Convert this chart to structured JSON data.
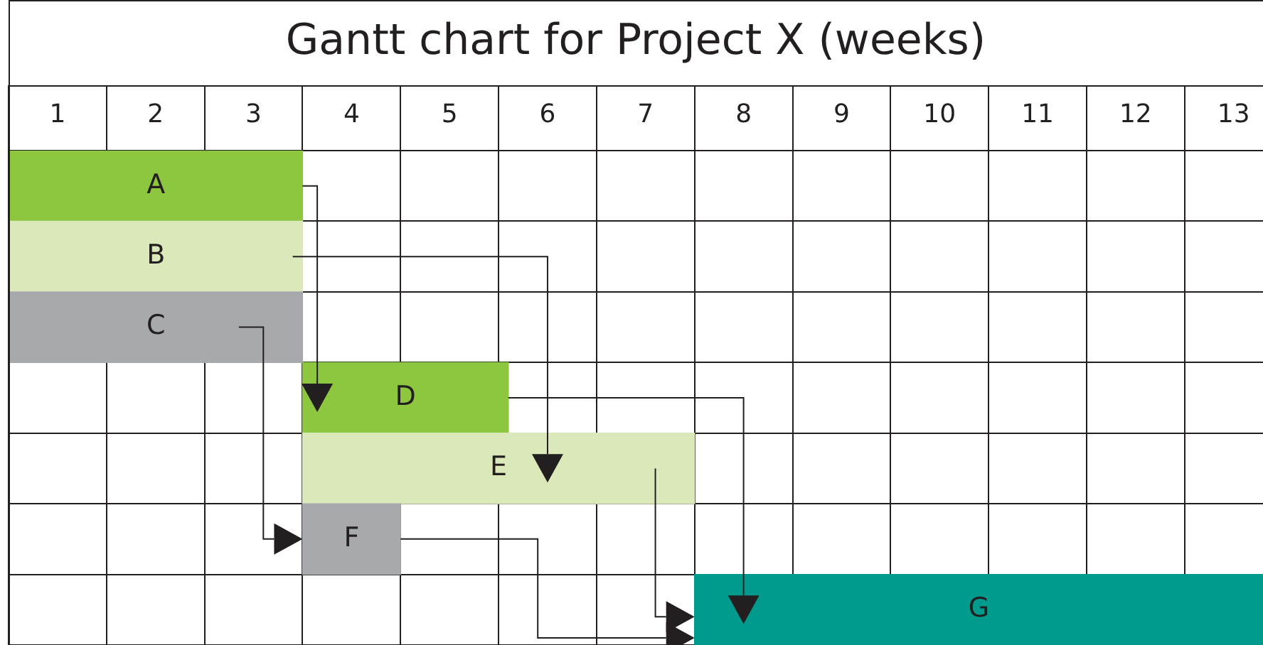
{
  "chart_data": {
    "type": "bar",
    "orientation": "horizontal",
    "title": "Gantt chart for Project X (weeks)",
    "categories": [
      "A",
      "B",
      "C",
      "D",
      "E",
      "F",
      "G"
    ],
    "base": [
      0,
      0,
      0,
      3,
      3,
      3,
      7
    ],
    "values": [
      3,
      3,
      3,
      2.1,
      4,
      1,
      5.8
    ],
    "colors": [
      "#8dc63f",
      "#dbe8b9",
      "#a7a9ac",
      "#8dc63f",
      "#dbe8b9",
      "#a7a9ac",
      "#009b8d"
    ],
    "xlim": [
      0,
      12.8
    ],
    "xticks": [
      {
        "value": 0,
        "label": null
      },
      {
        "value": 0.5,
        "label": "1"
      },
      {
        "value": 1,
        "label": null
      },
      {
        "value": 1.5,
        "label": "2"
      },
      {
        "value": 2,
        "label": null
      },
      {
        "value": 2.5,
        "label": "3"
      },
      {
        "value": 3,
        "label": null
      },
      {
        "value": 3.5,
        "label": "4"
      },
      {
        "value": 4,
        "label": null
      },
      {
        "value": 4.5,
        "label": "5"
      },
      {
        "value": 5,
        "label": null
      },
      {
        "value": 5.5,
        "label": "6"
      },
      {
        "value": 6,
        "label": null
      },
      {
        "value": 6.5,
        "label": "7"
      },
      {
        "value": 7,
        "label": null
      },
      {
        "value": 7.5,
        "label": "8"
      },
      {
        "value": 8,
        "label": null
      },
      {
        "value": 8.5,
        "label": "9"
      },
      {
        "value": 9,
        "label": null
      },
      {
        "value": 9.5,
        "label": "10"
      },
      {
        "value": 10,
        "label": null
      },
      {
        "value": 10.5,
        "label": "11"
      },
      {
        "value": 11,
        "label": null
      },
      {
        "value": 11.5,
        "label": "12"
      },
      {
        "value": 12,
        "label": null
      },
      {
        "value": 12.5,
        "label": "13"
      }
    ],
    "grid": true
  }
}
